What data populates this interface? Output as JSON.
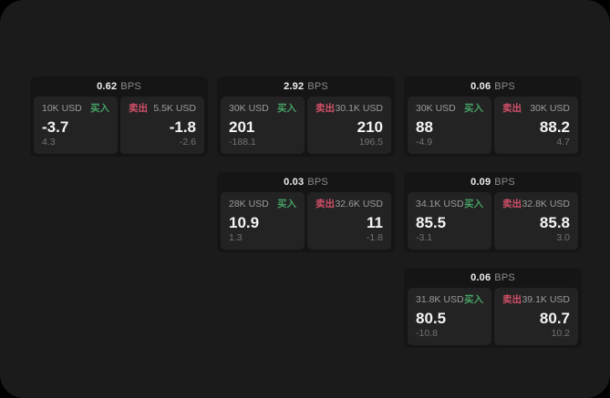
{
  "labels": {
    "bps": "BPS",
    "buy": "买入",
    "sell": "卖出"
  },
  "colors": {
    "buy": "#46a064",
    "sell": "#d25069",
    "window_bg": "#1b1b1c",
    "card_bg": "#151515",
    "panel_bg": "#232323"
  },
  "cards": [
    {
      "bps": "0.62",
      "buy": {
        "amount": "10K USD",
        "value": "-3.7",
        "delta": "4.3"
      },
      "sell": {
        "amount": "5.5K USD",
        "value": "-1.8",
        "delta": "-2.6"
      }
    },
    {
      "bps": "2.92",
      "buy": {
        "amount": "30K USD",
        "value": "201",
        "delta": "-188.1"
      },
      "sell": {
        "amount": "30.1K USD",
        "value": "210",
        "delta": "196.5"
      }
    },
    {
      "bps": "0.06",
      "buy": {
        "amount": "30K USD",
        "value": "88",
        "delta": "-4.9"
      },
      "sell": {
        "amount": "30K USD",
        "value": "88.2",
        "delta": "4.7"
      }
    },
    {
      "bps": "0.03",
      "buy": {
        "amount": "28K USD",
        "value": "10.9",
        "delta": "1.3"
      },
      "sell": {
        "amount": "32.6K USD",
        "value": "11",
        "delta": "-1.8"
      }
    },
    {
      "bps": "0.09",
      "buy": {
        "amount": "34.1K USD",
        "value": "85.5",
        "delta": "-3.1"
      },
      "sell": {
        "amount": "32.8K USD",
        "value": "85.8",
        "delta": "3.0"
      }
    },
    {
      "bps": "0.06",
      "buy": {
        "amount": "31.8K USD",
        "value": "80.5",
        "delta": "-10.8"
      },
      "sell": {
        "amount": "39.1K USD",
        "value": "80.7",
        "delta": "10.2"
      }
    }
  ]
}
